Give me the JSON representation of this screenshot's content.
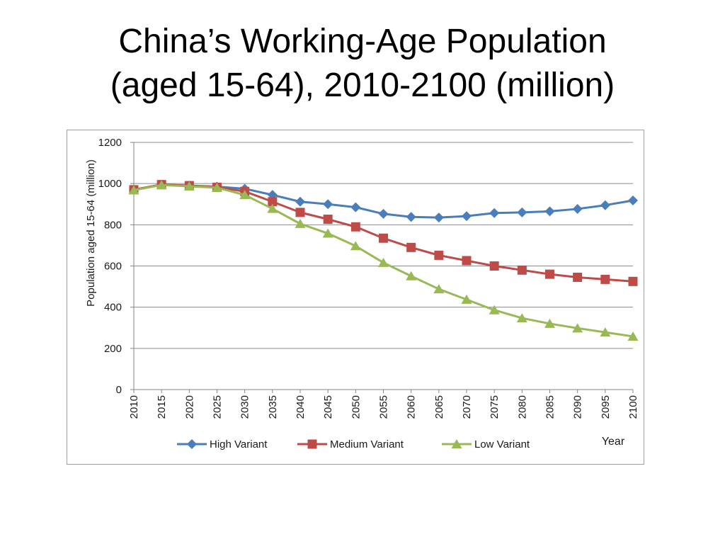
{
  "slide": {
    "title_line1": "China’s Working-Age Population",
    "title_line2": "(aged 15-64), 2010-2100 (million)"
  },
  "chart_data": {
    "type": "line",
    "xlabel": "Year",
    "ylabel": "Population aged 15-64 (million)",
    "ylim": [
      0,
      1200
    ],
    "yticks": [
      0,
      200,
      400,
      600,
      800,
      1000,
      1200
    ],
    "grid": "horizontal",
    "legend_position": "bottom",
    "x": [
      "2010",
      "2015",
      "2020",
      "2025",
      "2030",
      "2035",
      "2040",
      "2045",
      "2050",
      "2055",
      "2060",
      "2065",
      "2070",
      "2075",
      "2080",
      "2085",
      "2090",
      "2095",
      "2100"
    ],
    "series": [
      {
        "name": "High Variant",
        "color": "#4a7ebb",
        "marker": "diamond",
        "values": [
          970,
          995,
          990,
          985,
          975,
          945,
          912,
          900,
          885,
          853,
          838,
          835,
          842,
          857,
          860,
          865,
          877,
          895,
          918
        ]
      },
      {
        "name": "Medium Variant",
        "color": "#be4b48",
        "marker": "square",
        "values": [
          970,
          995,
          990,
          982,
          962,
          912,
          860,
          827,
          790,
          735,
          690,
          652,
          626,
          600,
          580,
          560,
          545,
          535,
          525
        ]
      },
      {
        "name": "Low Variant",
        "color": "#98b954",
        "marker": "triangle",
        "values": [
          968,
          993,
          987,
          980,
          945,
          878,
          805,
          758,
          697,
          616,
          551,
          488,
          437,
          386,
          347,
          320,
          298,
          278,
          258
        ]
      }
    ]
  }
}
